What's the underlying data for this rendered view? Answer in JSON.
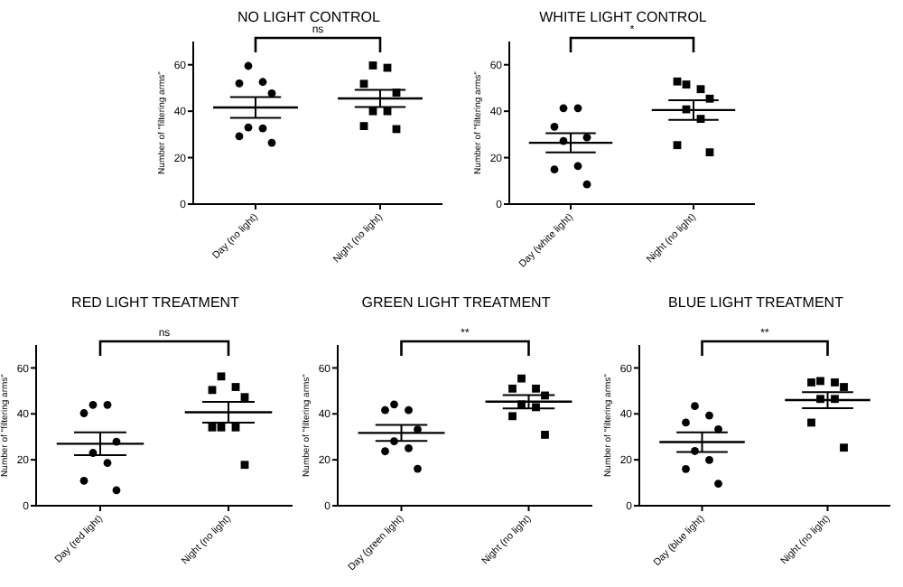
{
  "chart_data": [
    {
      "type": "scatter",
      "title": "NO LIGHT CONTROL",
      "ylabel": "Number of \"filtering arms\"",
      "categories": [
        "Day (no light)",
        "Night (no light)"
      ],
      "ylim": [
        0,
        70
      ],
      "yticks": [
        0,
        20,
        40,
        60
      ],
      "annotations": [
        "ns"
      ],
      "series": [
        {
          "color": "#000000",
          "marker": "circle",
          "x": [
            "Day (no light)",
            "Day (no light)",
            "Day (no light)",
            "Day (no light)",
            "Day (no light)",
            "Day (no light)",
            "Day (no light)",
            "Day (no light)"
          ],
          "values": [
            59.5,
            52.6,
            52,
            47.7,
            33,
            32.6,
            29.2,
            26.4
          ]
        },
        {
          "color": "#000000",
          "marker": "square",
          "x": [
            "Night (no light)",
            "Night (no light)",
            "Night (no light)",
            "Night (no light)",
            "Night (no light)",
            "Night (no light)",
            "Night (no light)",
            "Night (no light)"
          ],
          "values": [
            59.7,
            58.7,
            51.8,
            48,
            40,
            40,
            33.6,
            32.3
          ]
        },
        {
          "type": "bar",
          "color": "#000000",
          "x": [
            "Day (no light)",
            "Night (no light)"
          ],
          "values": [
            41.6,
            45.5
          ],
          "errors": [
            4.5,
            3.7
          ]
        }
      ]
    },
    {
      "type": "scatter",
      "title": "WHITE LIGHT CONTROL",
      "ylabel": "Number of \"filtering arms\"",
      "categories": [
        "Day (white light)",
        "Night (no light)"
      ],
      "ylim": [
        0,
        70
      ],
      "yticks": [
        0,
        20,
        40,
        60
      ],
      "annotations": [
        "*"
      ],
      "series": [
        {
          "color": "#000000",
          "marker": "circle",
          "x": [
            "Day (white light)",
            "Day (white light)",
            "Day (white light)",
            "Day (white light)",
            "Day (white light)",
            "Day (white light)",
            "Day (white light)",
            "Day (white light)"
          ],
          "values": [
            41.3,
            41.3,
            33.3,
            28.7,
            27.2,
            16.4,
            14.9,
            8.5
          ]
        },
        {
          "color": "#000000",
          "marker": "square",
          "x": [
            "Night (no light)",
            "Night (no light)",
            "Night (no light)",
            "Night (no light)",
            "Night (no light)",
            "Night (no light)",
            "Night (no light)",
            "Night (no light)"
          ],
          "values": [
            51.5,
            49.5,
            52.8,
            45.4,
            40.8,
            36.7,
            25.4,
            22.3
          ]
        },
        {
          "type": "bar",
          "color": "#000000",
          "x": [
            "Day (white light)",
            "Night (no light)"
          ],
          "values": [
            26.4,
            40.5
          ],
          "errors": [
            4.1,
            4.2
          ]
        }
      ]
    },
    {
      "type": "scatter",
      "title": "RED LIGHT TREATMENT",
      "ylabel": "Number of \"filtering arms\"",
      "categories": [
        "Day (red light)",
        "Night (no light)"
      ],
      "ylim": [
        0,
        70
      ],
      "yticks": [
        0,
        20,
        40,
        60
      ],
      "annotations": [
        "ns"
      ],
      "series": [
        {
          "color": "#000000",
          "marker": "circle",
          "x": [
            "Day (red light)",
            "Day (red light)",
            "Day (red light)",
            "Day (red light)",
            "Day (red light)",
            "Day (red light)",
            "Day (red light)",
            "Day (red light)"
          ],
          "values": [
            43.9,
            43.9,
            40.3,
            27.9,
            23,
            18.6,
            10.9,
            6.7
          ]
        },
        {
          "color": "#000000",
          "marker": "square",
          "x": [
            "Night (no light)",
            "Night (no light)",
            "Night (no light)",
            "Night (no light)",
            "Night (no light)",
            "Night (no light)",
            "Night (no light)",
            "Night (no light)"
          ],
          "values": [
            56.3,
            51.7,
            50.4,
            47.3,
            34.1,
            34.1,
            34.1,
            17.8
          ]
        },
        {
          "type": "bar",
          "color": "#000000",
          "x": [
            "Day (red light)",
            "Night (no light)"
          ],
          "values": [
            27,
            40.7
          ],
          "errors": [
            5,
            4.5
          ]
        }
      ]
    },
    {
      "type": "scatter",
      "title": "GREEN LIGHT TREATMENT",
      "ylabel": "Number of \"filtering arms\"",
      "categories": [
        "Day (green light)",
        "Night (no light)"
      ],
      "ylim": [
        0,
        70
      ],
      "yticks": [
        0,
        20,
        40,
        60
      ],
      "annotations": [
        "**"
      ],
      "series": [
        {
          "color": "#000000",
          "marker": "circle",
          "x": [
            "Day (green light)",
            "Day (green light)",
            "Day (green light)",
            "Day (green light)",
            "Day (green light)",
            "Day (green light)",
            "Day (green light)",
            "Day (green light)"
          ],
          "values": [
            44.1,
            41.6,
            41.6,
            33.2,
            28.1,
            25,
            23.7,
            16.1
          ]
        },
        {
          "color": "#000000",
          "marker": "square",
          "x": [
            "Night (no light)",
            "Night (no light)",
            "Night (no light)",
            "Night (no light)",
            "Night (no light)",
            "Night (no light)",
            "Night (no light)",
            "Night (no light)"
          ],
          "values": [
            55.4,
            51,
            51,
            48,
            44.1,
            42.9,
            39,
            30.9
          ]
        },
        {
          "type": "bar",
          "color": "#000000",
          "x": [
            "Day (green light)",
            "Night (no light)"
          ],
          "values": [
            31.7,
            45.3
          ],
          "errors": [
            3.5,
            2.9
          ]
        }
      ]
    },
    {
      "type": "scatter",
      "title": "BLUE LIGHT TREATMENT",
      "ylabel": "Number of \"filtering arms\"",
      "categories": [
        "Day (blue light)",
        "Night (no light)"
      ],
      "ylim": [
        0,
        70
      ],
      "yticks": [
        0,
        20,
        40,
        60
      ],
      "annotations": [
        "**"
      ],
      "series": [
        {
          "color": "#000000",
          "marker": "circle",
          "x": [
            "Day (blue light)",
            "Day (blue light)",
            "Day (blue light)",
            "Day (blue light)",
            "Day (blue light)",
            "Day (blue light)",
            "Day (blue light)",
            "Day (blue light)"
          ],
          "values": [
            43.4,
            39.3,
            36.2,
            33.3,
            23.8,
            19.9,
            16,
            9.6
          ]
        },
        {
          "color": "#000000",
          "marker": "square",
          "x": [
            "Night (no light)",
            "Night (no light)",
            "Night (no light)",
            "Night (no light)",
            "Night (no light)",
            "Night (no light)",
            "Night (no light)",
            "Night (no light)"
          ],
          "values": [
            54.3,
            53.7,
            53.7,
            51.7,
            46.5,
            46.5,
            36.2,
            25.3
          ]
        },
        {
          "type": "bar",
          "color": "#000000",
          "x": [
            "Day (blue light)",
            "Night (no light)"
          ],
          "values": [
            27.7,
            46
          ],
          "errors": [
            4.3,
            3.5
          ]
        }
      ]
    }
  ]
}
